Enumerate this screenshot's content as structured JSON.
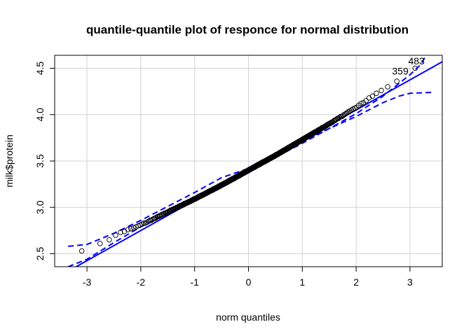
{
  "chart_data": {
    "type": "scatter",
    "title": "quantile-quantile plot of responce for normal distribution",
    "xlabel": "norm quantiles",
    "ylabel": "milk$protein",
    "xlim": [
      -3.6,
      3.6
    ],
    "ylim": [
      2.36,
      4.64
    ],
    "xticks": [
      -3,
      -2,
      -1,
      0,
      1,
      2,
      3
    ],
    "yticks": [
      2.5,
      3.0,
      3.5,
      4.0,
      4.5
    ],
    "xtick_labels": [
      "-3",
      "-2",
      "-1",
      "0",
      "1",
      "2",
      "3"
    ],
    "ytick_labels": [
      "2.5",
      "3.0",
      "3.5",
      "4.0",
      "4.5"
    ],
    "grid": true,
    "reference_line": {
      "intercept": 3.4,
      "slope": 0.325,
      "color": "#0000ff"
    },
    "envelope": {
      "color": "#0000ff",
      "style": "dashed",
      "lower": [
        [
          -3.35,
          2.36
        ],
        [
          -3.0,
          2.44
        ],
        [
          -2.5,
          2.62
        ],
        [
          -2.0,
          2.79
        ],
        [
          -1.5,
          2.94
        ],
        [
          -1.0,
          3.08
        ],
        [
          -0.5,
          3.23
        ],
        [
          0.0,
          3.38
        ],
        [
          0.5,
          3.54
        ],
        [
          1.0,
          3.69
        ],
        [
          1.5,
          3.85
        ],
        [
          2.0,
          4.01
        ],
        [
          2.5,
          4.2
        ],
        [
          3.0,
          4.43
        ],
        [
          3.2,
          4.54
        ],
        [
          3.3,
          4.64
        ]
      ],
      "upper": [
        [
          -3.35,
          2.58
        ],
        [
          -3.0,
          2.6
        ],
        [
          -2.5,
          2.72
        ],
        [
          -2.0,
          2.86
        ],
        [
          -1.5,
          3.01
        ],
        [
          -1.0,
          3.16
        ],
        [
          -0.5,
          3.32
        ],
        [
          0.0,
          3.42
        ],
        [
          0.5,
          3.56
        ],
        [
          1.0,
          3.71
        ],
        [
          1.5,
          3.85
        ],
        [
          2.0,
          3.98
        ],
        [
          2.5,
          4.13
        ],
        [
          2.8,
          4.2
        ],
        [
          3.0,
          4.23
        ],
        [
          3.4,
          4.24
        ]
      ]
    },
    "points": {
      "marker": "open-circle",
      "color": "#000000",
      "quantile_breaks": [
        [
          -3.35,
          2.45
        ],
        [
          -3.05,
          2.55
        ],
        [
          -2.85,
          2.59
        ],
        [
          -2.6,
          2.65
        ],
        [
          -2.4,
          2.72
        ],
        [
          -2.0,
          2.81
        ],
        [
          -1.5,
          2.95
        ],
        [
          -1.0,
          3.09
        ],
        [
          -0.5,
          3.24
        ],
        [
          0.0,
          3.4
        ],
        [
          0.5,
          3.56
        ],
        [
          1.0,
          3.73
        ],
        [
          1.5,
          3.9
        ],
        [
          2.0,
          4.08
        ],
        [
          2.3,
          4.2
        ],
        [
          2.5,
          4.27
        ],
        [
          2.7,
          4.34
        ],
        [
          2.9,
          4.42
        ],
        [
          3.05,
          4.47
        ],
        [
          3.15,
          4.53
        ],
        [
          3.35,
          4.58
        ]
      ],
      "count": 520
    },
    "labeled_points": [
      {
        "label": "483",
        "x": 3.35,
        "y": 4.58
      },
      {
        "label": "359",
        "x": 3.05,
        "y": 4.47
      }
    ]
  }
}
